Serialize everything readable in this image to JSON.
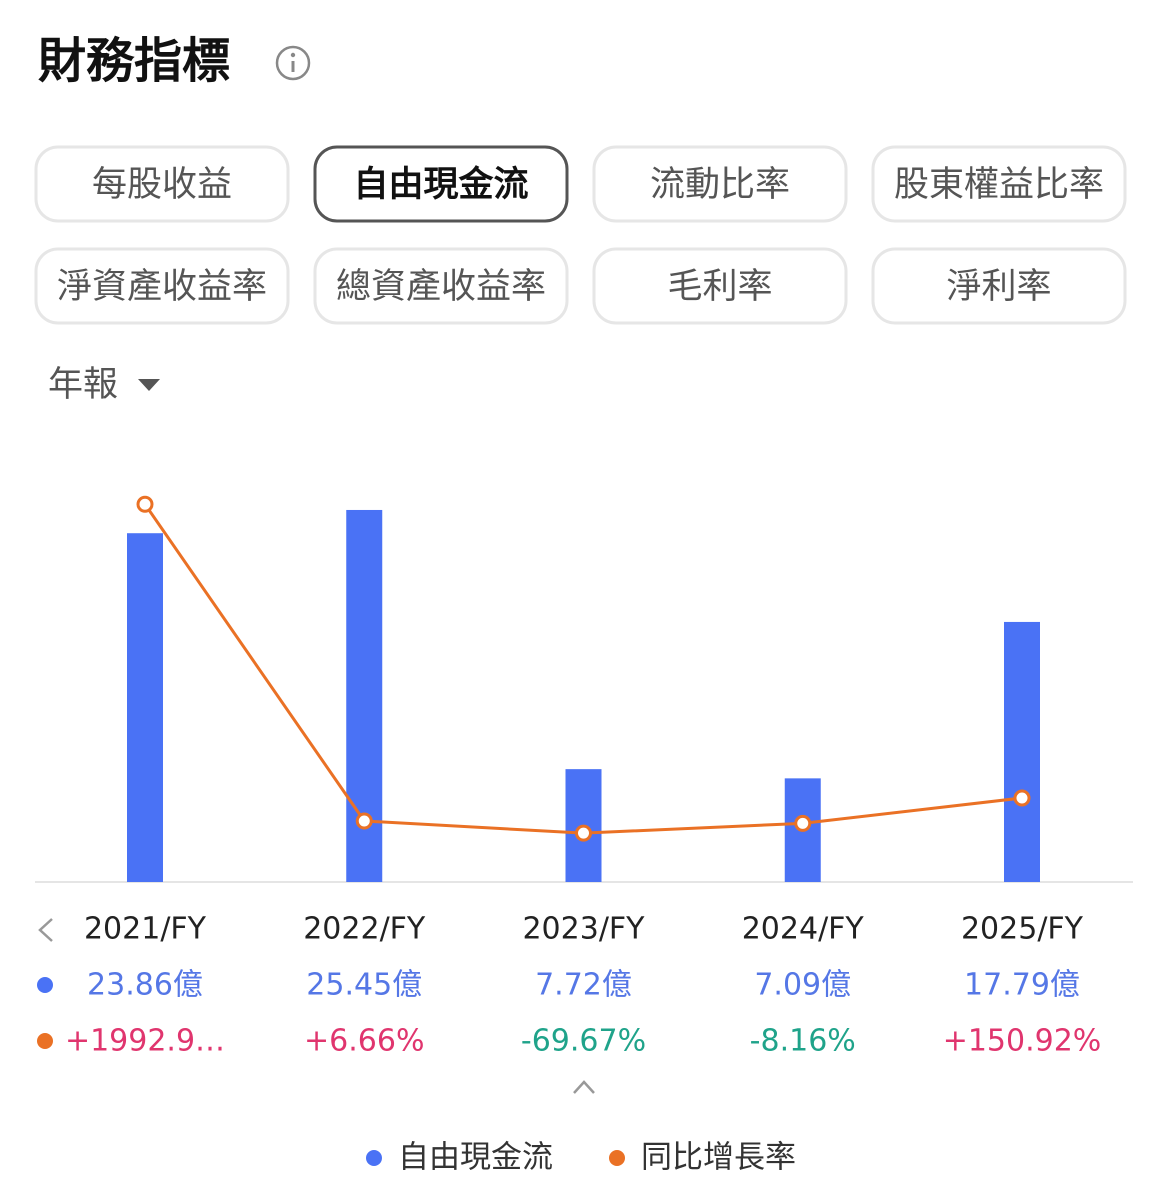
{
  "header": {
    "title": "財務指標"
  },
  "tabs": {
    "items": [
      "每股收益",
      "自由現金流",
      "流動比率",
      "股東權益比率",
      "淨資產收益率",
      "總資產收益率",
      "毛利率",
      "淨利率"
    ],
    "selected": 1
  },
  "period": "年報",
  "chart_data": {
    "type": "bar-line",
    "categories": [
      "2021/FY",
      "2022/FY",
      "2023/FY",
      "2024/FY",
      "2025/FY"
    ],
    "series": [
      {
        "name": "自由現金流",
        "color": "#4a72f5",
        "type": "bar",
        "values": [
          23.86,
          25.45,
          7.72,
          7.09,
          17.79
        ],
        "value_labels": [
          "23.86億",
          "25.45億",
          "7.72億",
          "7.09億",
          "17.79億"
        ]
      },
      {
        "name": "同比增長率",
        "color": "#ea7125",
        "type": "line",
        "axis": "y2",
        "values": [
          1992.9,
          6.66,
          -69.67,
          -8.16,
          150.92
        ],
        "value_labels": [
          "+1992.9…",
          "+6.66%",
          "-69.67%",
          "-8.16%",
          "+150.92%"
        ]
      }
    ],
    "ylim": [
      0,
      27.5
    ],
    "y2lim": [
      -376,
      2145
    ]
  }
}
